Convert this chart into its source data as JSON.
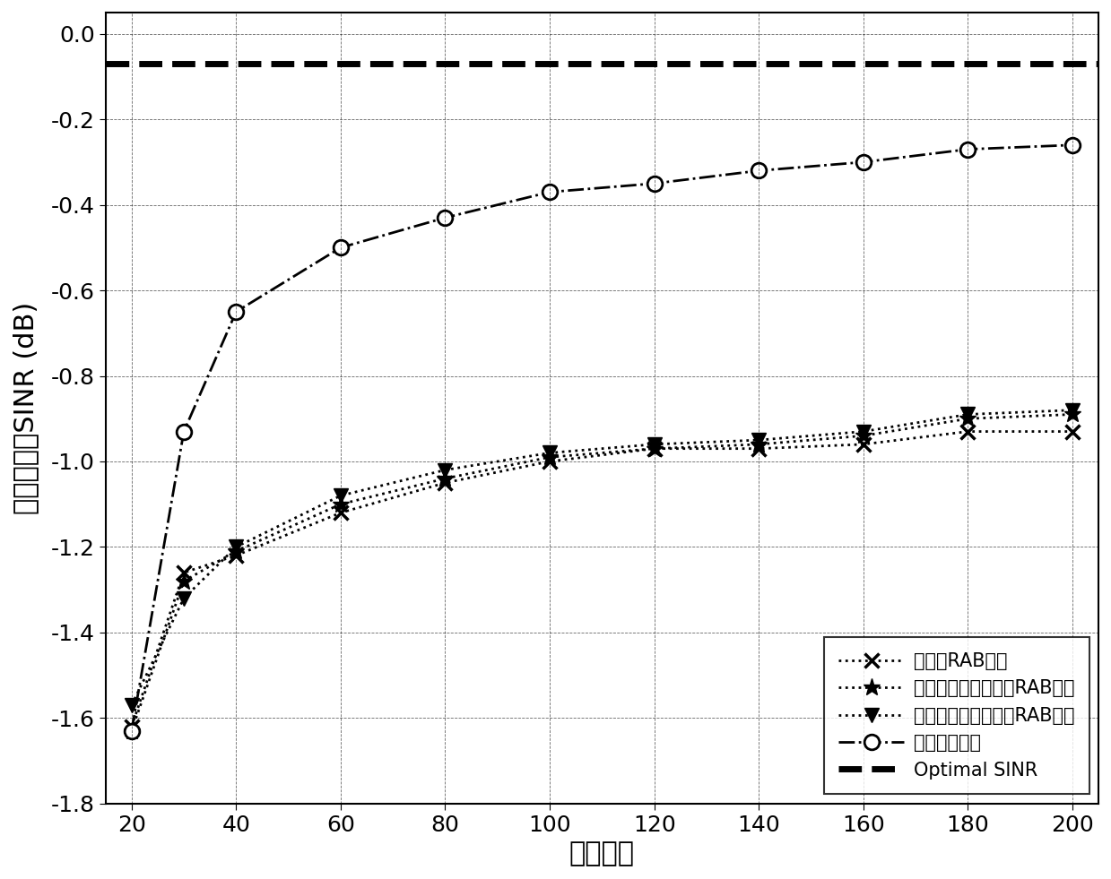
{
  "x": [
    20,
    30,
    40,
    60,
    80,
    100,
    120,
    140,
    160,
    180,
    200
  ],
  "classical_RAB": [
    -1.62,
    -1.26,
    -1.22,
    -1.12,
    -1.05,
    -1.0,
    -0.97,
    -0.97,
    -0.96,
    -0.93,
    -0.93
  ],
  "data_independent_RAB": [
    -1.63,
    -1.28,
    -1.21,
    -1.1,
    -1.04,
    -0.99,
    -0.97,
    -0.96,
    -0.94,
    -0.9,
    -0.89
  ],
  "data_corr_RAB": [
    -1.57,
    -1.32,
    -1.2,
    -1.08,
    -1.02,
    -0.98,
    -0.96,
    -0.95,
    -0.93,
    -0.89,
    -0.88
  ],
  "proposed": [
    -1.63,
    -0.93,
    -0.65,
    -0.5,
    -0.43,
    -0.37,
    -0.35,
    -0.32,
    -0.3,
    -0.27,
    -0.26
  ],
  "optimal_SINR": -0.07,
  "xlabel": "快拍次数",
  "ylabel": "阵列的输出SINR (dB)",
  "xlim": [
    15,
    205
  ],
  "ylim": [
    -1.8,
    0.05
  ],
  "xticks": [
    20,
    40,
    60,
    80,
    100,
    120,
    140,
    160,
    180,
    200
  ],
  "yticks": [
    0,
    -0.2,
    -0.4,
    -0.6,
    -0.8,
    -1.0,
    -1.2,
    -1.4,
    -1.6,
    -1.8
  ],
  "legend_labels": [
    "经典的RAB算法",
    "基于数据独立约束的RAB算法",
    "基于数据相关约束的RAB算法",
    "本文所提算法",
    "Optimal SINR"
  ],
  "line_color": "#000000",
  "background_color": "#ffffff"
}
